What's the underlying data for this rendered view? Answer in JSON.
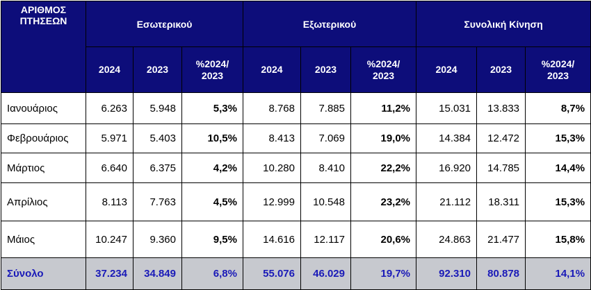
{
  "header": {
    "corner": "ΑΡΙΘΜΟΣ ΠΤΗΣΕΩΝ",
    "groups": [
      "Εσωτερικού",
      "Εξωτερικού",
      "Συνολική Κίνηση"
    ],
    "sub": [
      "2024",
      "2023",
      "%2024/ 2023"
    ]
  },
  "rows": [
    {
      "month": "Ιανουάριος",
      "cells": [
        "6.263",
        "5.948",
        "5,3%",
        "8.768",
        "7.885",
        "11,2%",
        "15.031",
        "13.833",
        "8,7%"
      ]
    },
    {
      "month": "Φεβρουάριος",
      "cells": [
        "5.971",
        "5.403",
        "10,5%",
        "8.413",
        "7.069",
        "19,0%",
        "14.384",
        "12.472",
        "15,3%"
      ]
    },
    {
      "month": "Μάρτιος",
      "cells": [
        "6.640",
        "6.375",
        "4,2%",
        "10.280",
        "8.410",
        "22,2%",
        "16.920",
        "14.785",
        "14,4%"
      ]
    },
    {
      "month": "Απρίλιος",
      "cells": [
        "8.113",
        "7.763",
        "4,5%",
        "12.999",
        "10.548",
        "23,2%",
        "21.112",
        "18.311",
        "15,3%"
      ]
    },
    {
      "month": "Μάιος",
      "cells": [
        "10.247",
        "9.360",
        "9,5%",
        "14.616",
        "12.117",
        "20,6%",
        "24.863",
        "21.477",
        "15,8%"
      ]
    }
  ],
  "total": {
    "month": "Σύνολο",
    "cells": [
      "37.234",
      "34.849",
      "6,8%",
      "55.076",
      "46.029",
      "19,7%",
      "92.310",
      "80.878",
      "14,1%"
    ]
  }
}
